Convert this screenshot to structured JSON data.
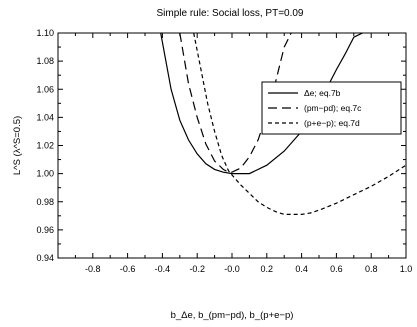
{
  "chart_data": {
    "type": "line",
    "title": "Simple rule: Social loss, PT=0.09",
    "xlabel": "b_Δe, b_(pm−pd), b_(p+e−p)",
    "ylabel": "L^S (λ^S=0.5)",
    "xlim": [
      -1.0,
      1.0
    ],
    "ylim": [
      0.94,
      1.1
    ],
    "xticks": [
      "-0.8",
      "-0.6",
      "-0.4",
      "-0.2",
      "-0.0",
      "0.2",
      "0.4",
      "0.6",
      "0.8",
      "1.0"
    ],
    "yticks": [
      "0.94",
      "0.96",
      "0.98",
      "1.00",
      "1.02",
      "1.04",
      "1.06",
      "1.08",
      "1.10"
    ],
    "grid": false,
    "legend": "upper-right-inside",
    "series": [
      {
        "name": "Δe; eq.7b",
        "style": "solid",
        "x": [
          -0.41,
          -0.35,
          -0.3,
          -0.25,
          -0.2,
          -0.15,
          -0.1,
          -0.05,
          0.0,
          0.05,
          0.1,
          0.2,
          0.3,
          0.4,
          0.5,
          0.6,
          0.65,
          0.7,
          0.75
        ],
        "y": [
          1.1,
          1.06,
          1.038,
          1.024,
          1.014,
          1.007,
          1.003,
          1.001,
          1.0,
          1.0,
          1.0,
          1.006,
          1.016,
          1.03,
          1.05,
          1.074,
          1.085,
          1.097,
          1.1
        ]
      },
      {
        "name": "(pm−pd); eq.7c",
        "style": "dashed",
        "x": [
          -0.3,
          -0.25,
          -0.2,
          -0.15,
          -0.1,
          -0.05,
          -0.02,
          0.0,
          0.05,
          0.1,
          0.15,
          0.2,
          0.25,
          0.3,
          0.34
        ],
        "y": [
          1.1,
          1.064,
          1.04,
          1.021,
          1.009,
          1.003,
          1.001,
          1.001,
          1.004,
          1.012,
          1.024,
          1.042,
          1.065,
          1.09,
          1.1
        ]
      },
      {
        "name": "(p+e−p); eq.7d",
        "style": "short-dashed",
        "x": [
          -0.22,
          -0.18,
          -0.14,
          -0.1,
          -0.06,
          -0.02,
          0.0,
          0.05,
          0.1,
          0.15,
          0.2,
          0.25,
          0.3,
          0.35,
          0.4,
          0.45,
          0.5,
          0.6,
          0.7,
          0.8,
          0.9,
          1.0
        ],
        "y": [
          1.1,
          1.075,
          1.05,
          1.03,
          1.013,
          1.002,
          0.999,
          0.992,
          0.986,
          0.98,
          0.976,
          0.973,
          0.971,
          0.971,
          0.971,
          0.972,
          0.974,
          0.979,
          0.985,
          0.991,
          0.998,
          1.006
        ]
      }
    ]
  }
}
